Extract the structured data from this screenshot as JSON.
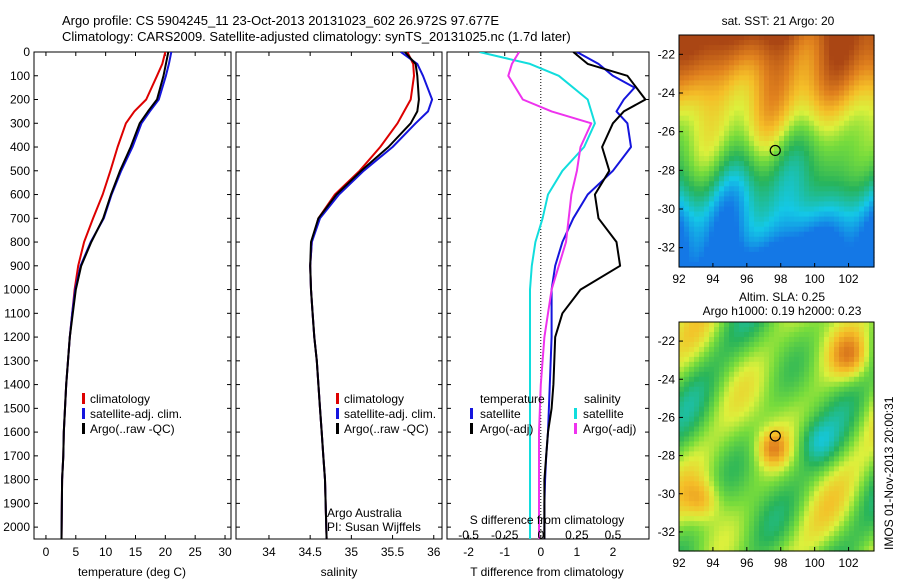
{
  "header": {
    "title_line1": "Argo profile: CS 5904245_11 23-Oct-2013 20131023_602 26.972S 97.677E",
    "title_line2": "Climatology: CARS2009. Satellite-adjusted climatology: synTS_20131025.nc (1.7d later)"
  },
  "colors": {
    "climatology": "#dd0000",
    "satellite": "#1515dd",
    "argo": "#000000",
    "satellite_salinity": "#11dddd",
    "argo_salinity": "#ee33ee"
  },
  "chart_data": [
    {
      "type": "line",
      "panel": "temperature",
      "xlabel": "temperature (deg C)",
      "xticks": [
        "0",
        "5",
        "10",
        "15",
        "20",
        "25",
        "30"
      ],
      "xlim": [
        -2,
        31
      ],
      "yticks": [
        "0",
        "100",
        "200",
        "300",
        "400",
        "500",
        "600",
        "700",
        "800",
        "900",
        "1000",
        "1100",
        "1200",
        "1300",
        "1400",
        "1500",
        "1600",
        "1700",
        "1800",
        "1900",
        "2000"
      ],
      "ylim": [
        2050,
        0
      ],
      "legend": [
        "climatology",
        "satellite-adj. clim.",
        "Argo(..raw -QC)"
      ],
      "series": [
        {
          "name": "climatology",
          "color": "#dd0000",
          "x": [
            20.0,
            19.5,
            18.6,
            16.8,
            14.8,
            13.4,
            12.0,
            10.8,
            9.5,
            7.9,
            6.4,
            5.4,
            4.8,
            4.4,
            4.0,
            3.7,
            3.4,
            3.2,
            3.0,
            2.9,
            2.7,
            2.6
          ],
          "y": [
            0,
            50,
            100,
            200,
            250,
            300,
            400,
            500,
            600,
            700,
            800,
            900,
            1000,
            1100,
            1200,
            1300,
            1400,
            1500,
            1600,
            1700,
            1800,
            2050
          ]
        },
        {
          "name": "satellite-adj. clim.",
          "color": "#1515dd",
          "x": [
            21.0,
            20.6,
            20.1,
            18.9,
            17.4,
            16.0,
            14.5,
            12.6,
            11.0,
            9.7,
            7.5,
            5.8,
            4.9,
            4.4,
            4.0,
            3.7,
            3.4,
            3.2,
            3.0,
            2.9,
            2.7,
            2.6
          ],
          "y": [
            0,
            50,
            100,
            200,
            250,
            300,
            400,
            500,
            600,
            700,
            800,
            900,
            1000,
            1100,
            1200,
            1300,
            1400,
            1500,
            1600,
            1700,
            1800,
            2050
          ]
        },
        {
          "name": "Argo(..raw -QC)",
          "color": "#000000",
          "x": [
            20.5,
            20.1,
            19.7,
            18.6,
            17.1,
            15.7,
            14.2,
            12.4,
            10.9,
            9.6,
            7.6,
            5.9,
            5.0,
            4.5,
            4.0,
            3.7,
            3.4,
            3.2,
            3.0,
            2.9,
            2.7,
            2.6
          ],
          "y": [
            0,
            50,
            100,
            200,
            250,
            300,
            400,
            500,
            600,
            700,
            800,
            900,
            1000,
            1100,
            1200,
            1300,
            1400,
            1500,
            1600,
            1700,
            1800,
            2050
          ]
        }
      ]
    },
    {
      "type": "line",
      "panel": "salinity",
      "xlabel": "salinity",
      "xticks": [
        "34",
        "34.5",
        "35",
        "35.5",
        "36"
      ],
      "xlim": [
        33.6,
        36.1
      ],
      "ylim": [
        2050,
        0
      ],
      "legend": [
        "climatology",
        "satellite-adj. clim.",
        "Argo(..raw -QC)"
      ],
      "annotation": [
        "Argo Australia",
        "PI: Susan Wijffels"
      ],
      "series": [
        {
          "name": "climatology",
          "color": "#dd0000",
          "x": [
            35.68,
            35.75,
            35.76,
            35.72,
            35.64,
            35.56,
            35.35,
            35.1,
            34.8,
            34.6,
            34.52,
            34.5,
            34.51,
            34.53,
            34.55,
            34.58,
            34.6,
            34.62,
            34.64,
            34.66,
            34.68,
            34.7
          ],
          "y": [
            0,
            50,
            100,
            200,
            250,
            300,
            400,
            500,
            600,
            700,
            800,
            900,
            1000,
            1100,
            1200,
            1300,
            1400,
            1500,
            1600,
            1700,
            1800,
            2050
          ]
        },
        {
          "name": "satellite-adj. clim.",
          "color": "#1515dd",
          "x": [
            35.6,
            35.8,
            35.87,
            35.98,
            35.93,
            35.78,
            35.5,
            35.15,
            34.85,
            34.62,
            34.52,
            34.5,
            34.51,
            34.53,
            34.55,
            34.58,
            34.6,
            34.62,
            34.64,
            34.66,
            34.68,
            34.7
          ],
          "y": [
            0,
            50,
            100,
            200,
            250,
            300,
            400,
            500,
            600,
            700,
            800,
            900,
            1000,
            1100,
            1200,
            1300,
            1400,
            1500,
            1600,
            1700,
            1800,
            2050
          ]
        },
        {
          "name": "Argo(..raw -QC)",
          "color": "#000000",
          "x": [
            35.65,
            35.78,
            35.8,
            35.82,
            35.8,
            35.72,
            35.45,
            35.12,
            34.82,
            34.6,
            34.51,
            34.5,
            34.51,
            34.53,
            34.55,
            34.58,
            34.6,
            34.62,
            34.64,
            34.66,
            34.68,
            34.7
          ],
          "y": [
            0,
            50,
            100,
            200,
            250,
            300,
            400,
            500,
            600,
            700,
            800,
            900,
            1000,
            1100,
            1200,
            1300,
            1400,
            1500,
            1600,
            1700,
            1800,
            2050
          ]
        }
      ]
    },
    {
      "type": "line",
      "panel": "differences",
      "xlabel": "T difference from climatology",
      "xticks": [
        "-2",
        "-1",
        "0",
        "1",
        "2"
      ],
      "xlim": [
        -2.6,
        3.0
      ],
      "top_xlabel": "S difference from climatology",
      "top_xticks": [
        "-0.5",
        "-0.25",
        "0",
        "0.25",
        "0.5"
      ],
      "ylim": [
        2050,
        0
      ],
      "legend_title_left": "temperature",
      "legend_title_right": "salinity",
      "legend": [
        "satellite",
        "Argo(-adj)",
        "satellite",
        "Argo(-adj)"
      ],
      "series": [
        {
          "name": "temperature satellite",
          "color": "#1515dd",
          "x": [
            1.0,
            1.6,
            2.0,
            2.6,
            2.3,
            2.1,
            2.4,
            2.5,
            2.0,
            1.3,
            0.9,
            0.6,
            0.4,
            0.3,
            0.3,
            0.3,
            0.25,
            0.2,
            0.15,
            0.12,
            0.1,
            0.1
          ],
          "y": [
            0,
            50,
            100,
            150,
            200,
            250,
            300,
            400,
            500,
            600,
            700,
            800,
            900,
            1000,
            1100,
            1200,
            1400,
            1600,
            1700,
            1800,
            1900,
            2050
          ]
        },
        {
          "name": "temperature Argo(-adj)",
          "color": "#000000",
          "x": [
            0.9,
            1.3,
            2.4,
            2.9,
            2.3,
            2.0,
            1.7,
            1.9,
            1.5,
            1.6,
            2.1,
            2.2,
            1.1,
            0.6,
            0.4,
            0.35,
            0.3,
            0.2,
            0.15,
            0.1,
            0.1
          ],
          "y": [
            0,
            50,
            100,
            200,
            250,
            300,
            400,
            500,
            600,
            700,
            800,
            900,
            1000,
            1100,
            1200,
            1400,
            1500,
            1600,
            1700,
            1800,
            2050
          ]
        },
        {
          "name": "salinity satellite",
          "color": "#11dddd",
          "x": [
            -1.7,
            -0.3,
            0.5,
            1.3,
            1.5,
            1.2,
            0.6,
            0.2,
            0.05,
            -0.15,
            -0.25,
            -0.3,
            -0.3,
            -0.3,
            -0.3,
            -0.3,
            -0.3
          ],
          "y": [
            0,
            50,
            100,
            200,
            300,
            400,
            500,
            600,
            700,
            800,
            900,
            1000,
            1200,
            1400,
            1600,
            1800,
            2050
          ]
        },
        {
          "name": "salinity Argo(-adj)",
          "color": "#ee33ee",
          "x": [
            -0.6,
            -0.8,
            -0.9,
            -0.5,
            0.3,
            1.4,
            1.1,
            1.0,
            0.85,
            0.7,
            0.5,
            0.3,
            0.2,
            0.1,
            0.05,
            0.0,
            -0.05,
            -0.05
          ],
          "y": [
            0,
            50,
            100,
            200,
            250,
            300,
            400,
            500,
            600,
            800,
            900,
            1000,
            1100,
            1200,
            1300,
            1400,
            1600,
            2050
          ]
        }
      ]
    },
    {
      "type": "heatmap",
      "panel": "sat_sst_map",
      "title": "sat. SST: 21 Argo: 20",
      "xticks": [
        "92",
        "94",
        "96",
        "98",
        "100",
        "102"
      ],
      "yticks": [
        "-22",
        "-24",
        "-26",
        "-28",
        "-30",
        "-32"
      ],
      "xlim": [
        92,
        103.5
      ],
      "ylim": [
        -33,
        -21
      ],
      "marker": {
        "lon": 97.677,
        "lat": -26.972
      }
    },
    {
      "type": "heatmap",
      "panel": "altim_sla_map",
      "title_line1": "Altim. SLA: 0.25",
      "title_line2": "Argo h1000: 0.19 h2000: 0.23",
      "xticks": [
        "92",
        "94",
        "96",
        "98",
        "100",
        "102"
      ],
      "yticks": [
        "-22",
        "-24",
        "-26",
        "-28",
        "-30",
        "-32"
      ],
      "xlim": [
        92,
        103.5
      ],
      "ylim": [
        -33,
        -21
      ],
      "marker": {
        "lon": 97.677,
        "lat": -26.972
      }
    }
  ],
  "watermark": "IMOS 01-Nov-2013 20:00:31"
}
